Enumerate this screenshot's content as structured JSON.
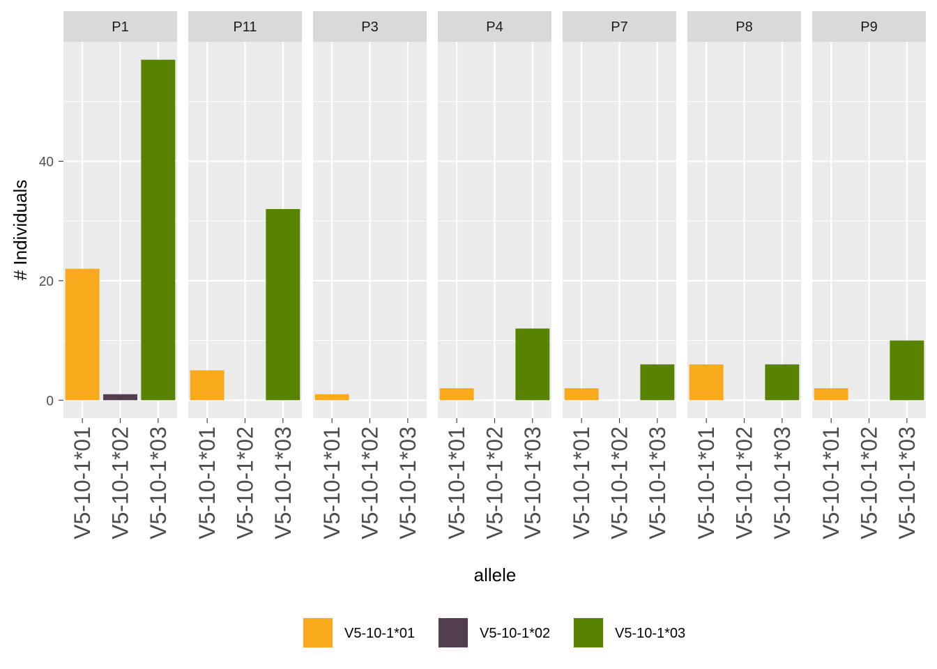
{
  "chart_data": {
    "type": "bar",
    "facet_by": "panel",
    "panels": [
      "P1",
      "P11",
      "P3",
      "P4",
      "P7",
      "P8",
      "P9"
    ],
    "categories": [
      "V5-10-1*01",
      "V5-10-1*02",
      "V5-10-1*03"
    ],
    "values": {
      "P1": [
        22,
        1,
        57
      ],
      "P11": [
        5,
        0,
        32
      ],
      "P3": [
        1,
        0,
        0
      ],
      "P4": [
        2,
        0,
        12
      ],
      "P7": [
        2,
        0,
        6
      ],
      "P8": [
        6,
        0,
        6
      ],
      "P9": [
        2,
        0,
        10
      ]
    },
    "xlabel": "allele",
    "ylabel": "# Individuals",
    "ylim": [
      -3,
      60
    ],
    "yticks": [
      0,
      20,
      40
    ],
    "grid": true,
    "legend": {
      "position": "bottom",
      "entries": [
        {
          "label": "V5-10-1*01",
          "color": "#F8A91C"
        },
        {
          "label": "V5-10-1*02",
          "color": "#533E50"
        },
        {
          "label": "V5-10-1*03",
          "color": "#588300"
        }
      ]
    }
  }
}
